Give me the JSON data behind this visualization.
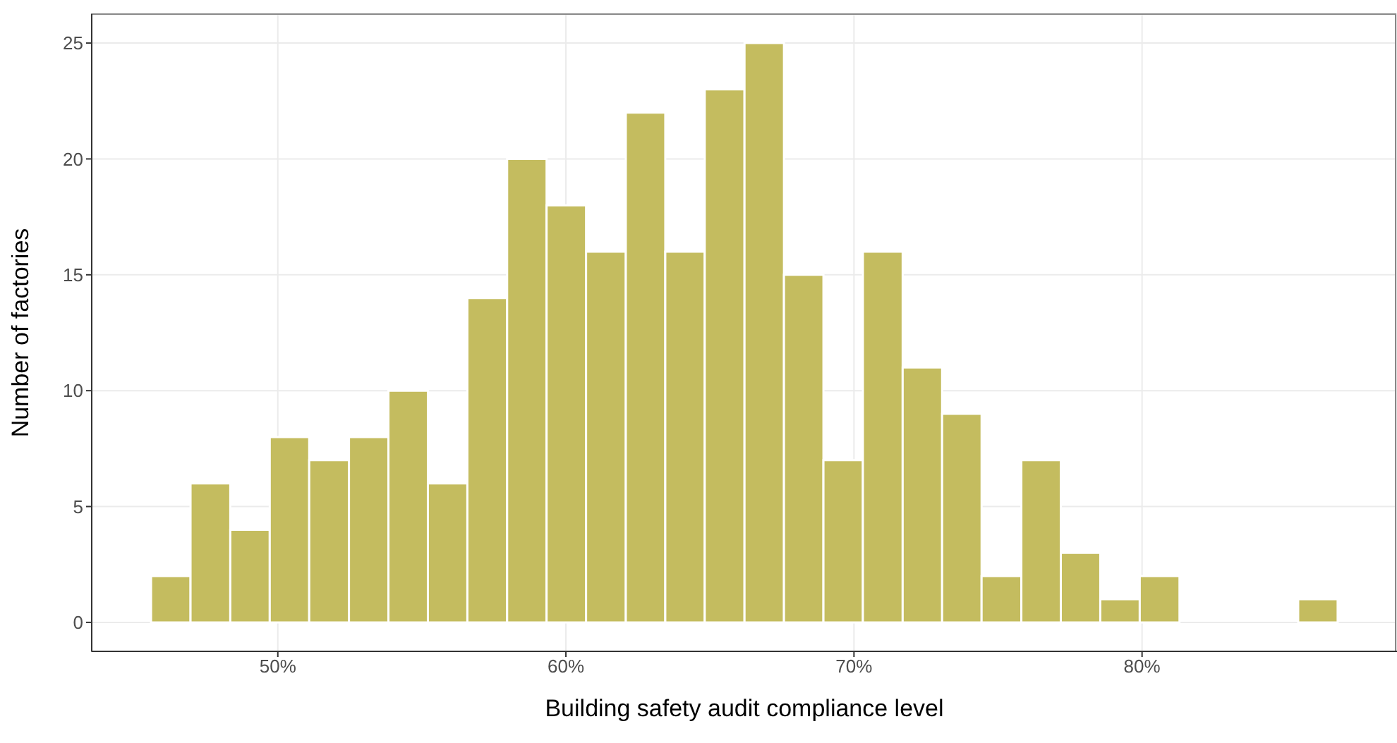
{
  "chart_data": {
    "type": "histogram",
    "xlabel": "Building safety audit compliance level",
    "ylabel": "Number of factories",
    "bins": [
      45.6,
      46.97,
      48.35,
      49.72,
      51.09,
      52.47,
      53.84,
      55.21,
      56.58,
      57.96,
      59.33,
      60.7,
      62.08,
      63.45,
      64.82,
      66.2,
      67.57,
      68.94,
      70.31,
      71.69,
      73.06,
      74.43,
      75.81,
      77.18,
      78.55,
      79.92,
      81.3,
      82.67,
      84.04,
      85.42,
      86.79
    ],
    "values": [
      2,
      6,
      4,
      8,
      7,
      8,
      10,
      6,
      14,
      20,
      18,
      16,
      22,
      16,
      23,
      25,
      15,
      7,
      16,
      11,
      9,
      2,
      7,
      3,
      1,
      2,
      0,
      0,
      0,
      1
    ],
    "color": "#c4bc5f",
    "xlim": [
      43.54,
      88.85
    ],
    "xticks": [
      {
        "value": 50,
        "label": "50%"
      },
      {
        "value": 60,
        "label": "60%"
      },
      {
        "value": 70,
        "label": "70%"
      },
      {
        "value": 80,
        "label": "80%"
      }
    ],
    "ylim": [
      -1.25,
      26.25
    ],
    "yticks": [
      0,
      5,
      10,
      15,
      20,
      25
    ],
    "grid": true
  }
}
